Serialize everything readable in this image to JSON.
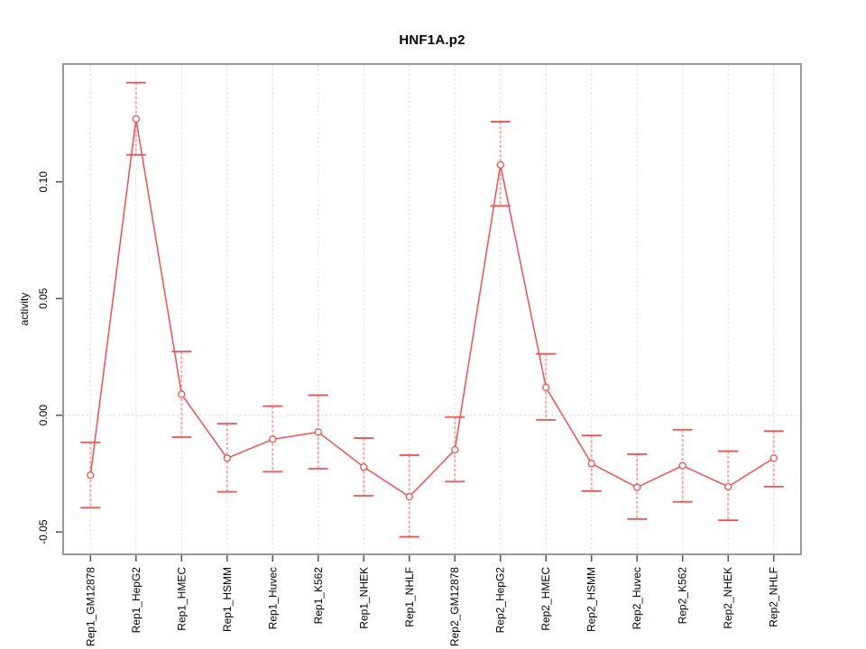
{
  "chart_data": {
    "type": "line",
    "title": "HNF1A.p2",
    "xlabel": "",
    "ylabel": "activity",
    "categories": [
      "Rep1_GM12878",
      "Rep1_HepG2",
      "Rep1_HMEC",
      "Rep1_HSMM",
      "Rep1_Huvec",
      "Rep1_K562",
      "Rep1_NHEK",
      "Rep1_NHLF",
      "Rep2_GM12878",
      "Rep2_HepG2",
      "Rep2_HMEC",
      "Rep2_HSMM",
      "Rep2_Huvec",
      "Rep2_K562",
      "Rep2_NHEK",
      "Rep2_NHLF"
    ],
    "series": [
      {
        "name": "HNF1A.p2 activity",
        "values": [
          -0.0257,
          0.127,
          0.009,
          -0.0184,
          -0.0103,
          -0.0072,
          -0.0222,
          -0.0349,
          -0.0148,
          0.1073,
          0.0119,
          -0.0207,
          -0.0309,
          -0.0216,
          -0.0306,
          -0.0184
        ],
        "ci_low": [
          -0.0396,
          0.1116,
          -0.0094,
          -0.0328,
          -0.0242,
          -0.0229,
          -0.0345,
          -0.0521,
          -0.0284,
          0.0897,
          -0.002,
          -0.0325,
          -0.0445,
          -0.0371,
          -0.045,
          -0.0306
        ],
        "ci_high": [
          -0.0116,
          0.1425,
          0.0273,
          -0.0036,
          0.0039,
          0.0086,
          -0.0098,
          -0.0171,
          -0.0008,
          0.1258,
          0.0263,
          -0.0087,
          -0.0167,
          -0.0062,
          -0.0154,
          -0.0068
        ]
      }
    ],
    "error_bars": true,
    "marker": "open-circle",
    "yticks": {
      "values": [
        -0.05,
        0.0,
        0.05,
        0.1
      ],
      "labels": [
        "-0.05",
        "0.00",
        "0.05",
        "0.10"
      ]
    },
    "ylim": [
      -0.0596,
      0.1505
    ],
    "grid": {
      "vertical_per_category": true,
      "horizontal_at_zero": true,
      "style": "dotted"
    },
    "legend_position": "none",
    "colors": {
      "series": "#F05050",
      "error_bar_whisker": "#F6A5A5",
      "grid": "#DCDCDC",
      "frame": "#999999",
      "tick": "#555555",
      "text": "#000000",
      "background": "#FFFFFF"
    }
  }
}
